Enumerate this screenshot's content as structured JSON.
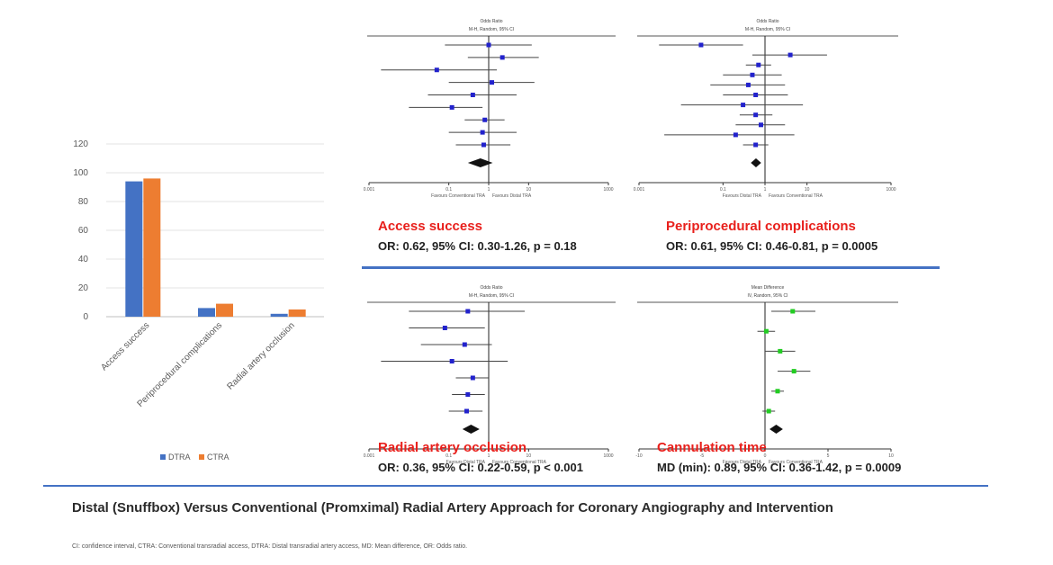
{
  "caption": {
    "title": "Distal (Snuffbox) Versus Conventional (Promximal) Radial Artery Approach for Coronary Angiography and Intervention",
    "footnote": "CI: confidence interval, CTRA: Conventional transradial access, DTRA: Distal transradial artery access, MD: Mean difference, OR: Odds ratio."
  },
  "colors": {
    "dtra": "#4472c4",
    "ctra": "#ed7d31",
    "outcome_title": "#e8201c",
    "divider": "#4472c4"
  },
  "panels": [
    {
      "outcome": "Access success",
      "stats": "OR: 0.62, 95% CI: 0.30-1.26, p = 0.18"
    },
    {
      "outcome": "Periprocedural complications",
      "stats": "OR: 0.61, 95% CI: 0.46-0.81, p = 0.0005"
    },
    {
      "outcome": "Radial artery occlusion",
      "stats": "OR: 0.36, 95% CI: 0.22-0.59, p < 0.001"
    },
    {
      "outcome": "Cannulation time",
      "stats": "MD (min): 0.89, 95% CI: 0.36-1.42, p = 0.0009"
    }
  ],
  "chart_data": [
    {
      "type": "bar",
      "categories": [
        "Access success",
        "Periprocedural complications",
        "Radial artery occlusion"
      ],
      "series": [
        {
          "name": "DTRA",
          "values": [
            94,
            6,
            2
          ]
        },
        {
          "name": "CTRA",
          "values": [
            96,
            9,
            5
          ]
        }
      ],
      "ylim": [
        0,
        120
      ],
      "yticks": [
        "0",
        "20",
        "40",
        "60",
        "80",
        "100",
        "120"
      ],
      "legend": "bottom",
      "grid": true
    },
    {
      "type": "forest",
      "title_lines": [
        "Odds Ratio",
        "M-H, Random, 95% CI"
      ],
      "scale": "log",
      "xlim": [
        0.001,
        1000
      ],
      "ticks": [
        "0.001",
        "0.1",
        "1",
        "10",
        "1000"
      ],
      "favours_left": "Favours Conventional TRA",
      "favours_right": "Favours Distal TRA",
      "studies": [
        {
          "est": 1.0,
          "lo": 0.08,
          "hi": 12
        },
        {
          "est": 2.2,
          "lo": 0.3,
          "hi": 18
        },
        {
          "est": 0.05,
          "lo": 0.002,
          "hi": 1.6
        },
        {
          "est": 1.2,
          "lo": 0.1,
          "hi": 14
        },
        {
          "est": 0.4,
          "lo": 0.03,
          "hi": 5
        },
        {
          "est": 0.12,
          "lo": 0.01,
          "hi": 0.7
        },
        {
          "est": 0.8,
          "lo": 0.25,
          "hi": 2.5
        },
        {
          "est": 0.7,
          "lo": 0.1,
          "hi": 5
        },
        {
          "est": 0.75,
          "lo": 0.15,
          "hi": 3.5
        }
      ],
      "pooled": {
        "est": 0.62,
        "lo": 0.3,
        "hi": 1.26
      }
    },
    {
      "type": "forest",
      "title_lines": [
        "Odds Ratio",
        "M-H, Random, 95% CI"
      ],
      "scale": "log",
      "xlim": [
        0.001,
        1000
      ],
      "ticks": [
        "0.001",
        "0.1",
        "1",
        "10",
        "1000"
      ],
      "favours_left": "Favours Distal TRA",
      "favours_right": "Favours Conventional TRA",
      "studies": [
        {
          "est": 0.03,
          "lo": 0.003,
          "hi": 0.3
        },
        {
          "est": 4.0,
          "lo": 0.5,
          "hi": 30
        },
        {
          "est": 0.7,
          "lo": 0.35,
          "hi": 1.4
        },
        {
          "est": 0.5,
          "lo": 0.1,
          "hi": 2.5
        },
        {
          "est": 0.4,
          "lo": 0.05,
          "hi": 3
        },
        {
          "est": 0.6,
          "lo": 0.1,
          "hi": 3.5
        },
        {
          "est": 0.3,
          "lo": 0.01,
          "hi": 8
        },
        {
          "est": 0.6,
          "lo": 0.25,
          "hi": 1.5
        },
        {
          "est": 0.8,
          "lo": 0.2,
          "hi": 3
        },
        {
          "est": 0.2,
          "lo": 0.004,
          "hi": 5
        },
        {
          "est": 0.6,
          "lo": 0.3,
          "hi": 1.2
        }
      ],
      "pooled": {
        "est": 0.61,
        "lo": 0.46,
        "hi": 0.81
      }
    },
    {
      "type": "forest",
      "title_lines": [
        "Odds Ratio",
        "M-H, Random, 95% CI"
      ],
      "scale": "log",
      "xlim": [
        0.001,
        1000
      ],
      "ticks": [
        "0.001",
        "0.1",
        "1",
        "10",
        "1000"
      ],
      "favours_left": "Favours Distal TRA",
      "favours_right": "Favours Conventional TRA",
      "studies": [
        {
          "est": 0.3,
          "lo": 0.01,
          "hi": 8
        },
        {
          "est": 0.08,
          "lo": 0.01,
          "hi": 0.8
        },
        {
          "est": 0.25,
          "lo": 0.02,
          "hi": 1.2
        },
        {
          "est": 0.12,
          "lo": 0.002,
          "hi": 3
        },
        {
          "est": 0.4,
          "lo": 0.15,
          "hi": 1.0
        },
        {
          "est": 0.3,
          "lo": 0.12,
          "hi": 0.8
        },
        {
          "est": 0.28,
          "lo": 0.1,
          "hi": 0.7
        }
      ],
      "pooled": {
        "est": 0.36,
        "lo": 0.22,
        "hi": 0.59
      }
    },
    {
      "type": "forest",
      "title_lines": [
        "Mean Difference",
        "IV, Random, 95% CI"
      ],
      "scale": "linear",
      "xlim": [
        -10,
        10
      ],
      "ticks": [
        "-10",
        "-5",
        "0",
        "5",
        "10"
      ],
      "marker_color": "#22cc22",
      "favours_left": "Favours Distal TRA",
      "favours_right": "Favours Conventional TRA",
      "studies": [
        {
          "est": 2.2,
          "lo": 0.5,
          "hi": 4.0
        },
        {
          "est": 0.1,
          "lo": -0.6,
          "hi": 0.8
        },
        {
          "est": 1.2,
          "lo": 0.0,
          "hi": 2.4
        },
        {
          "est": 2.3,
          "lo": 1.0,
          "hi": 3.6
        },
        {
          "est": 1.0,
          "lo": 0.5,
          "hi": 1.5
        },
        {
          "est": 0.3,
          "lo": -0.2,
          "hi": 0.8
        }
      ],
      "pooled": {
        "est": 0.89,
        "lo": 0.36,
        "hi": 1.42
      }
    }
  ]
}
